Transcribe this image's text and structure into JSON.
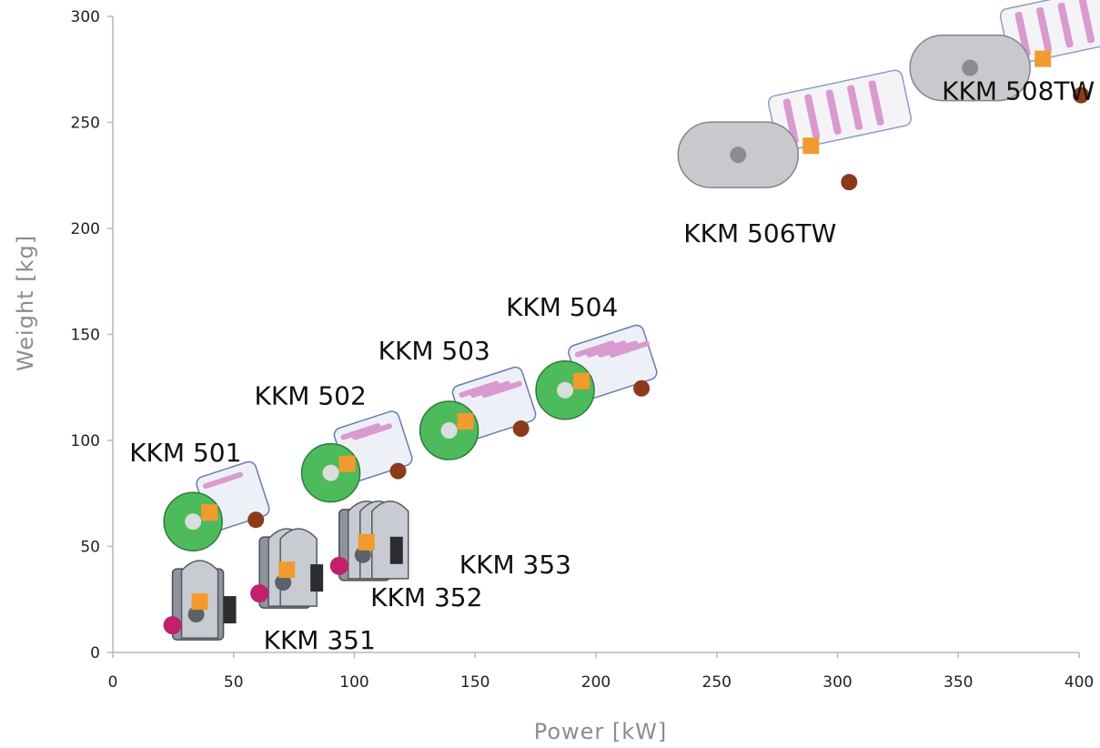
{
  "chart_data": {
    "type": "scatter",
    "title": "",
    "xlabel": "Power [kW]",
    "ylabel": "Weight [kg]",
    "xlim": [
      0,
      400
    ],
    "ylim": [
      0,
      300
    ],
    "xticks": [
      "0",
      "50",
      "100",
      "150",
      "200",
      "250",
      "300",
      "350",
      "400"
    ],
    "yticks": [
      "0",
      "50",
      "100",
      "150",
      "200",
      "250",
      "300"
    ],
    "grid": false,
    "marker_color": "#f39a2f",
    "points": [
      {
        "label": "KKM 351",
        "x": 36,
        "y": 24,
        "engine": "single-rotor-grey"
      },
      {
        "label": "KKM 352",
        "x": 72,
        "y": 39,
        "engine": "twin-rotor-grey"
      },
      {
        "label": "KKM 353",
        "x": 105,
        "y": 52,
        "engine": "triple-rotor-grey"
      },
      {
        "label": "KKM 501",
        "x": 40,
        "y": 66,
        "engine": "single-rotor-green"
      },
      {
        "label": "KKM 502",
        "x": 97,
        "y": 89,
        "engine": "twin-rotor-green"
      },
      {
        "label": "KKM 503",
        "x": 146,
        "y": 109,
        "engine": "triple-rotor-green"
      },
      {
        "label": "KKM 504",
        "x": 194,
        "y": 128,
        "engine": "quad-rotor-green"
      },
      {
        "label": "KKM 506TW",
        "x": 289,
        "y": 239,
        "engine": "twin-block-silver"
      },
      {
        "label": "KKM 508TW",
        "x": 385,
        "y": 280,
        "engine": "twin-block-silver"
      }
    ]
  }
}
